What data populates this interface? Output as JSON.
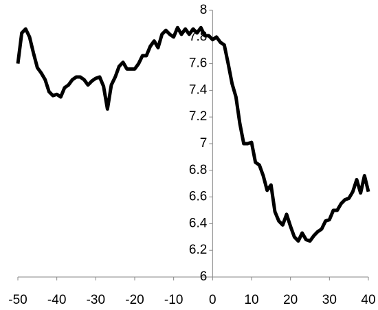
{
  "chart_data": {
    "type": "line",
    "x": [
      -50,
      -49,
      -48,
      -47,
      -46,
      -45,
      -44,
      -43,
      -42,
      -41,
      -40,
      -39,
      -38,
      -37,
      -36,
      -35,
      -34,
      -33,
      -32,
      -31,
      -30,
      -29,
      -28,
      -27,
      -26,
      -25,
      -24,
      -23,
      -22,
      -21,
      -20,
      -19,
      -18,
      -17,
      -16,
      -15,
      -14,
      -13,
      -12,
      -11,
      -10,
      -9,
      -8,
      -7,
      -6,
      -5,
      -4,
      -3,
      -2,
      -1,
      0,
      1,
      2,
      3,
      4,
      5,
      6,
      7,
      8,
      9,
      10,
      11,
      12,
      13,
      14,
      15,
      16,
      17,
      18,
      19,
      20,
      21,
      22,
      23,
      24,
      25,
      26,
      27,
      28,
      29,
      30,
      31,
      32,
      33,
      34,
      35,
      36,
      37,
      38,
      39,
      40
    ],
    "series": [
      {
        "color": "#000000",
        "values": [
          7.6,
          7.83,
          7.86,
          7.8,
          7.68,
          7.57,
          7.53,
          7.48,
          7.39,
          7.36,
          7.37,
          7.35,
          7.42,
          7.44,
          7.48,
          7.5,
          7.5,
          7.48,
          7.44,
          7.47,
          7.49,
          7.5,
          7.43,
          7.26,
          7.44,
          7.5,
          7.58,
          7.61,
          7.56,
          7.56,
          7.56,
          7.6,
          7.66,
          7.66,
          7.73,
          7.77,
          7.72,
          7.82,
          7.85,
          7.82,
          7.8,
          7.87,
          7.82,
          7.86,
          7.82,
          7.86,
          7.83,
          7.87,
          7.81,
          7.81,
          7.78,
          7.8,
          7.76,
          7.74,
          7.6,
          7.45,
          7.35,
          7.15,
          7.0,
          7.0,
          7.01,
          6.86,
          6.84,
          6.76,
          6.65,
          6.69,
          6.49,
          6.42,
          6.39,
          6.47,
          6.38,
          6.3,
          6.27,
          6.33,
          6.28,
          6.27,
          6.31,
          6.34,
          6.36,
          6.42,
          6.43,
          6.5,
          6.5,
          6.55,
          6.58,
          6.59,
          6.64,
          6.73,
          6.63,
          6.76,
          6.64
        ]
      }
    ],
    "xlim": [
      -50,
      40
    ],
    "xticks": [
      -50,
      -40,
      -30,
      -20,
      -10,
      0,
      10,
      20,
      30,
      40
    ],
    "ylim": [
      6,
      8
    ],
    "yticks": [
      6,
      6.2,
      6.4,
      6.6,
      6.8,
      7,
      7.2,
      7.4,
      7.6,
      7.8,
      8
    ],
    "grid": false
  }
}
